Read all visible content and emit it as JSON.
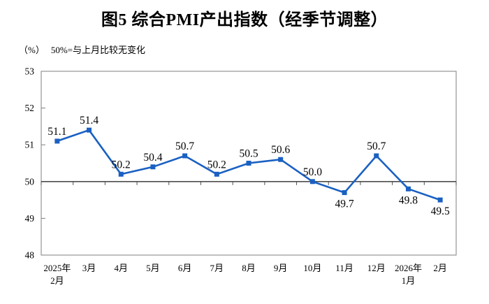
{
  "header": {
    "title": "图5 综合PMI产出指数（经季节调整）"
  },
  "subtitle": {
    "unit_label": "（%）",
    "annotation": "50%=与上月比较无变化"
  },
  "chart_data": {
    "type": "line",
    "title": "图5 综合PMI产出指数（经季节调整）",
    "unit": "%",
    "annotation": "50%=与上月比较无变化",
    "categories": [
      [
        "2025年",
        "2月"
      ],
      [
        "3月"
      ],
      [
        "4月"
      ],
      [
        "5月"
      ],
      [
        "6月"
      ],
      [
        "7月"
      ],
      [
        "8月"
      ],
      [
        "9月"
      ],
      [
        "10月"
      ],
      [
        "11月"
      ],
      [
        "12月"
      ],
      [
        "2026年",
        "1月"
      ],
      [
        "2月"
      ]
    ],
    "values": [
      51.1,
      51.4,
      50.2,
      50.4,
      50.7,
      50.2,
      50.5,
      50.6,
      50.0,
      49.7,
      50.7,
      49.8,
      49.5
    ],
    "value_labels": [
      "51.1",
      "51.4",
      "50.2",
      "50.4",
      "50.7",
      "50.2",
      "50.5",
      "50.6",
      "50.0",
      "49.7",
      "50.7",
      "49.8",
      "49.5"
    ],
    "label_positions": [
      "above",
      "above",
      "above",
      "above",
      "above",
      "above",
      "above",
      "above",
      "above",
      "below",
      "above",
      "below",
      "below"
    ],
    "ylim": [
      48,
      53
    ],
    "yticks": [
      48,
      49,
      50,
      51,
      52,
      53
    ],
    "reference_line": 50,
    "grid": false,
    "legend": "none",
    "marker": "square",
    "colors": {
      "line": "#1A60C2",
      "marker": "#1A60C2",
      "axis_border": "#7F7F7F",
      "reference_line": "#4D4D4D",
      "text": "#000000",
      "background": "#FFFFFF"
    }
  }
}
